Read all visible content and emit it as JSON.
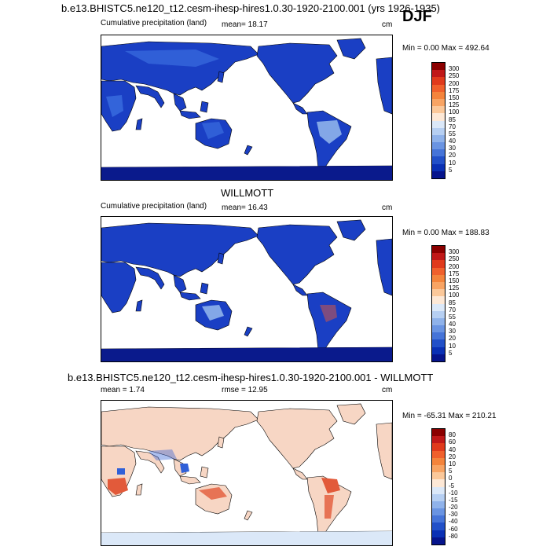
{
  "season": "DJF",
  "colors": {
    "land_blue": "#1a3fc4",
    "deep_blue": "#0a1a8c",
    "mid_blue": "#3a6ee0",
    "light_blue": "#9ec2f0",
    "ocean": "#ffffff",
    "diff_base": "#f7d6c4",
    "diff_red": "#e25a3a",
    "diff_blue": "#3060d8"
  },
  "panel1": {
    "title": "b.e13.BHISTC5.ne120_t12.cesm-ihesp-hires1.0.30-1920-2100.001 (yrs 1926-1935)",
    "subtitle": "Cumulative precipitation (land)",
    "mean": "mean=  18.17",
    "units": "cm",
    "minmax": "Min =   0.00 Max = 492.64"
  },
  "panel2": {
    "title": "WILLMOTT",
    "subtitle": "Cumulative precipitation (land)",
    "mean": "mean=  16.43",
    "units": "cm",
    "minmax": "Min =   0.00 Max = 188.83"
  },
  "panel3": {
    "title": "b.e13.BHISTC5.ne120_t12.cesm-ihesp-hires1.0.30-1920-2100.001 - WILLMOTT",
    "mean": "mean =   1.74",
    "rmse": "rmse =  12.95",
    "units": "cm",
    "minmax": "Min = -65.31 Max = 210.21"
  },
  "colorbar_precip": {
    "labels": [
      "300",
      "250",
      "200",
      "175",
      "150",
      "125",
      "100",
      "85",
      "70",
      "55",
      "40",
      "30",
      "20",
      "10",
      "5"
    ],
    "colors": [
      "#8b0000",
      "#c01818",
      "#e03a1c",
      "#f0602c",
      "#f4843c",
      "#f8a464",
      "#fbc89a",
      "#fde8d6",
      "#dbe8f8",
      "#b6cff2",
      "#8fb2ea",
      "#6a94e2",
      "#4674d8",
      "#2250c8",
      "#0a30b4",
      "#06148c"
    ]
  },
  "colorbar_diff": {
    "labels": [
      "80",
      "60",
      "40",
      "20",
      "10",
      "5",
      "0",
      "-5",
      "-10",
      "-15",
      "-20",
      "-30",
      "-40",
      "-60",
      "-80"
    ],
    "colors": [
      "#8b0000",
      "#c01818",
      "#e03a1c",
      "#f0602c",
      "#f4843c",
      "#f8a464",
      "#fbc89a",
      "#fde8d6",
      "#dbe8f8",
      "#b6cff2",
      "#8fb2ea",
      "#6a94e2",
      "#4674d8",
      "#2250c8",
      "#0a30b4",
      "#06148c"
    ]
  }
}
